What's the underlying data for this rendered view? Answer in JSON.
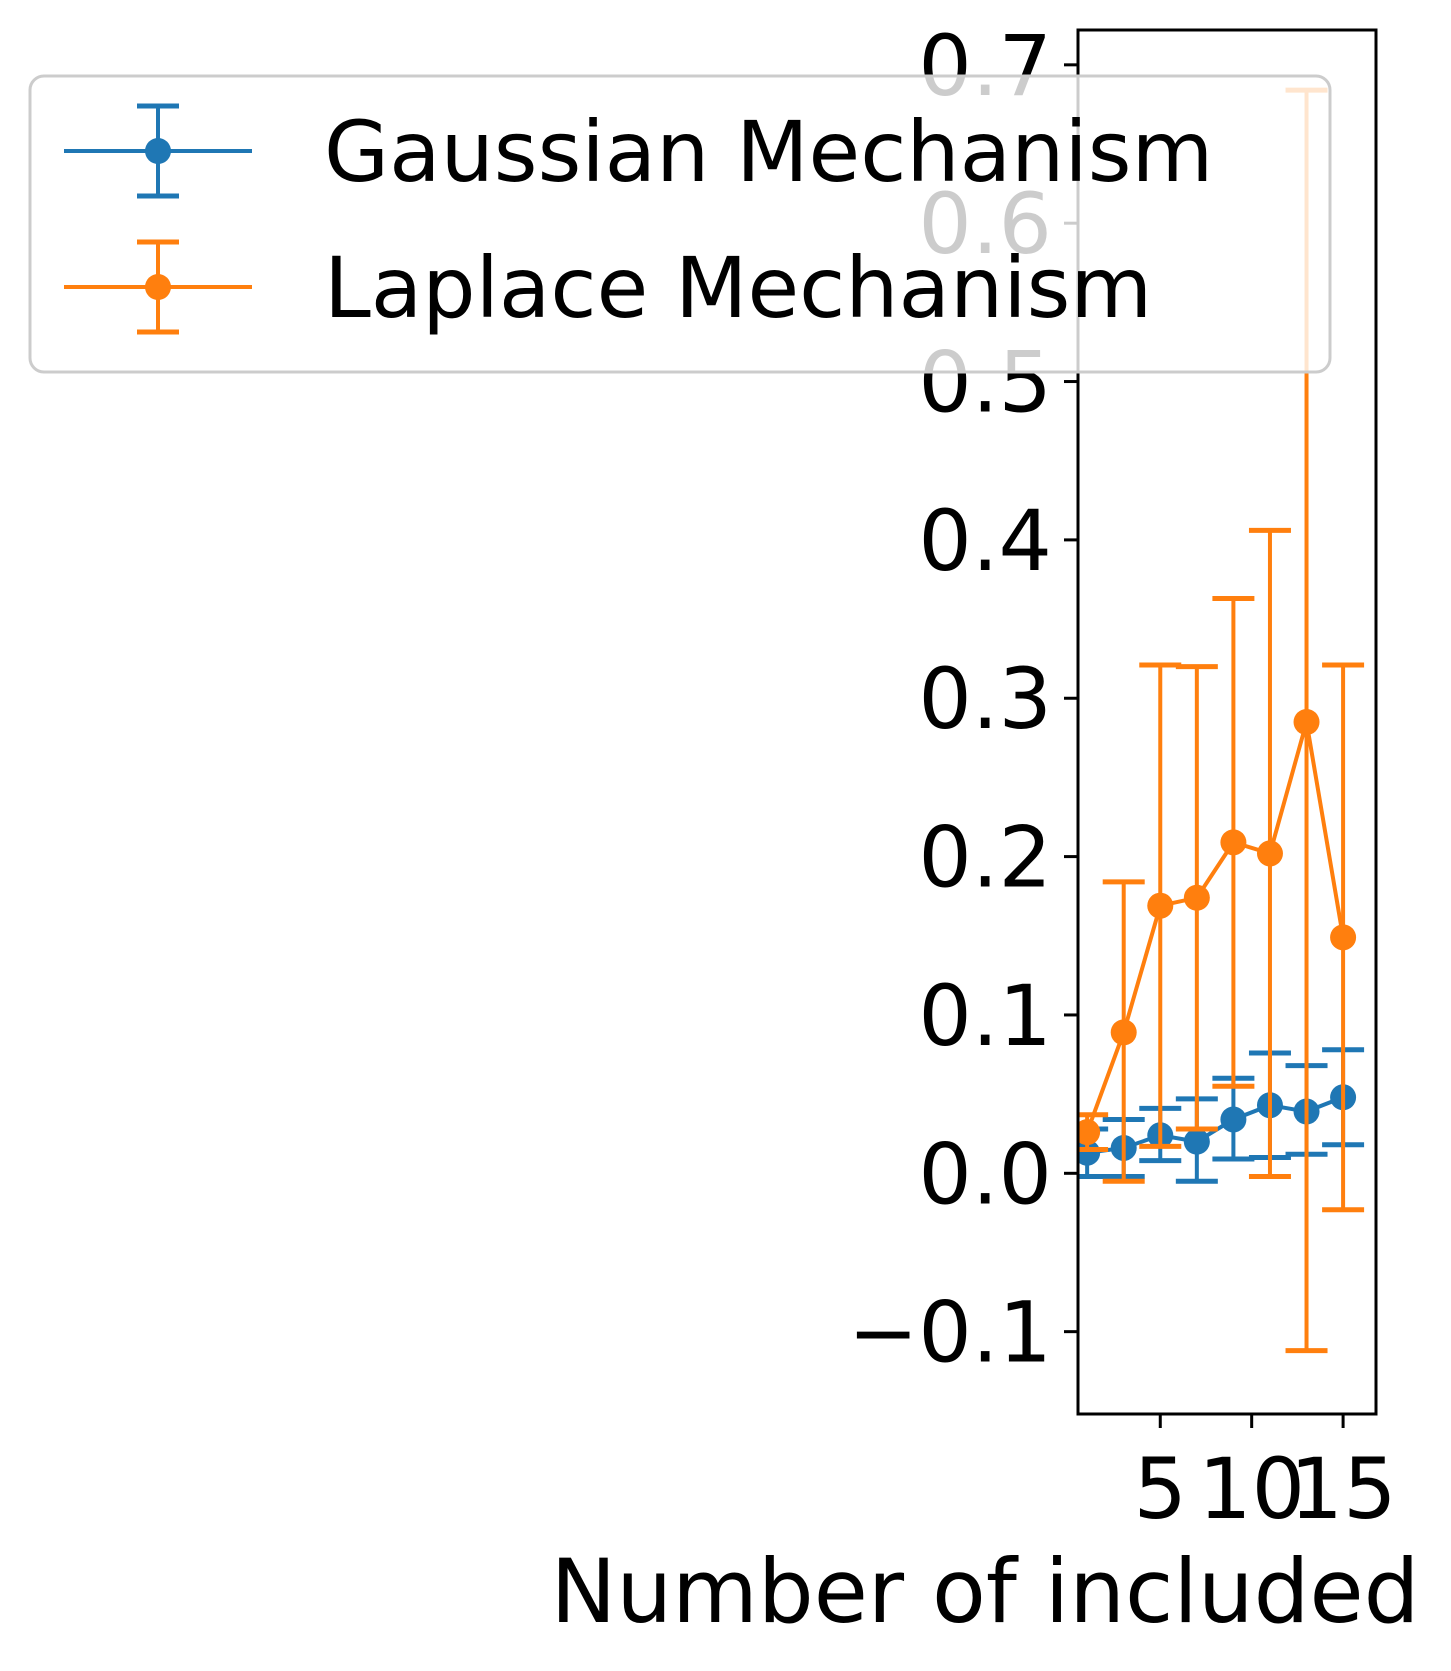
{
  "chart_data": {
    "type": "line",
    "errorbars": true,
    "title": "",
    "xlabel": "Number of included",
    "ylabel": "",
    "xlim": [
      0.5,
      16.8
    ],
    "ylim": [
      -0.152,
      0.722
    ],
    "x_ticks": [
      5,
      10,
      15
    ],
    "x_tick_labels": [
      "5",
      "10",
      "15"
    ],
    "y_ticks": [
      -0.1,
      0.0,
      0.1,
      0.2,
      0.3,
      0.4,
      0.5,
      0.6,
      0.7
    ],
    "y_tick_labels": [
      "−0.1",
      "0.0",
      "0.1",
      "0.2",
      "0.3",
      "0.4",
      "0.5",
      "0.6",
      "0.7"
    ],
    "grid": false,
    "legend_position": "top-left",
    "x": [
      1,
      3,
      5,
      7,
      9,
      11,
      13,
      15
    ],
    "series": [
      {
        "name": "Gaussian Mechanism",
        "color": "#1f77b4",
        "values": [
          0.013,
          0.016,
          0.024,
          0.02,
          0.034,
          0.043,
          0.039,
          0.048
        ],
        "err_low": [
          -0.002,
          -0.002,
          0.008,
          -0.005,
          0.009,
          0.01,
          0.012,
          0.018
        ],
        "err_high": [
          0.028,
          0.034,
          0.041,
          0.047,
          0.06,
          0.076,
          0.068,
          0.078
        ]
      },
      {
        "name": "Laplace Mechanism",
        "color": "#ff7f0e",
        "values": [
          0.026,
          0.089,
          0.169,
          0.174,
          0.209,
          0.202,
          0.285,
          0.149
        ],
        "err_low": [
          0.015,
          -0.005,
          0.017,
          0.028,
          0.055,
          -0.002,
          -0.112,
          -0.023
        ],
        "err_high": [
          0.037,
          0.184,
          0.321,
          0.32,
          0.363,
          0.406,
          0.684,
          0.321
        ]
      }
    ]
  }
}
